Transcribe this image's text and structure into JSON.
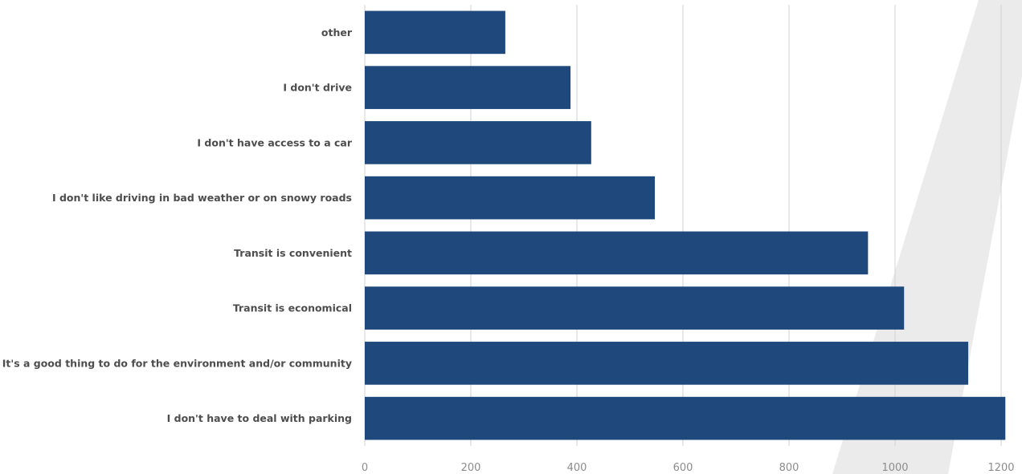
{
  "colors": {
    "bar": "#1f497d",
    "background": "#ffffff",
    "watermark": "#ebebeb",
    "grid": "#d0d0d0"
  },
  "chart_data": {
    "type": "bar",
    "orientation": "horizontal",
    "title": "",
    "xlabel": "",
    "ylabel": "",
    "xlim": [
      0,
      1200
    ],
    "xticks": [
      0,
      200,
      400,
      600,
      800,
      1000,
      1200
    ],
    "grid": true,
    "legend": "none",
    "categories": [
      "other",
      "I don't drive",
      "I don't have access to a car",
      "I don't like driving in bad weather or on snowy roads",
      "Transit is convenient",
      "Transit is economical",
      "It's a good thing to do for the environment and/or community",
      "I don't have to deal with parking"
    ],
    "values": [
      265,
      388,
      427,
      547,
      949,
      1017,
      1138,
      1208
    ]
  }
}
